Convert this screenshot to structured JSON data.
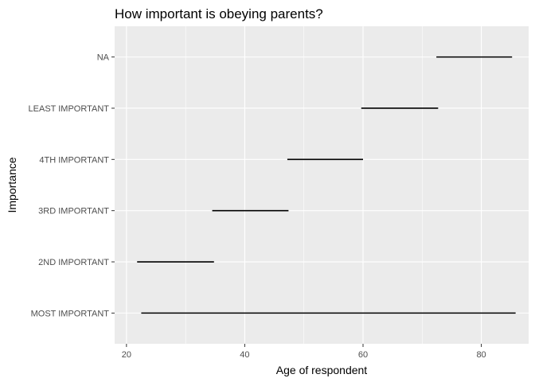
{
  "chart_data": {
    "type": "range",
    "title": "How important is obeying parents?",
    "xlabel": "Age of respondent",
    "ylabel": "Importance",
    "xlim": [
      18.0,
      88.0
    ],
    "x_ticks": [
      20,
      40,
      60,
      80
    ],
    "categories": [
      "MOST IMPORTANT",
      "2ND IMPORTANT",
      "3RD IMPORTANT",
      "4TH IMPORTANT",
      "LEAST IMPORTANT",
      "NA"
    ],
    "ranges": [
      {
        "category": "MOST IMPORTANT",
        "start": 22.5,
        "end": 85.8
      },
      {
        "category": "2ND IMPORTANT",
        "start": 21.8,
        "end": 34.8
      },
      {
        "category": "3RD IMPORTANT",
        "start": 34.5,
        "end": 47.4
      },
      {
        "category": "4TH IMPORTANT",
        "start": 47.2,
        "end": 60.0
      },
      {
        "category": "LEAST IMPORTANT",
        "start": 59.7,
        "end": 72.7
      },
      {
        "category": "NA",
        "start": 72.4,
        "end": 85.2
      }
    ],
    "grid": true,
    "colors": {
      "panel": "#ebebeb",
      "grid": "#ffffff",
      "segment": "#000000",
      "tick_text": "#4d4d4d"
    }
  }
}
